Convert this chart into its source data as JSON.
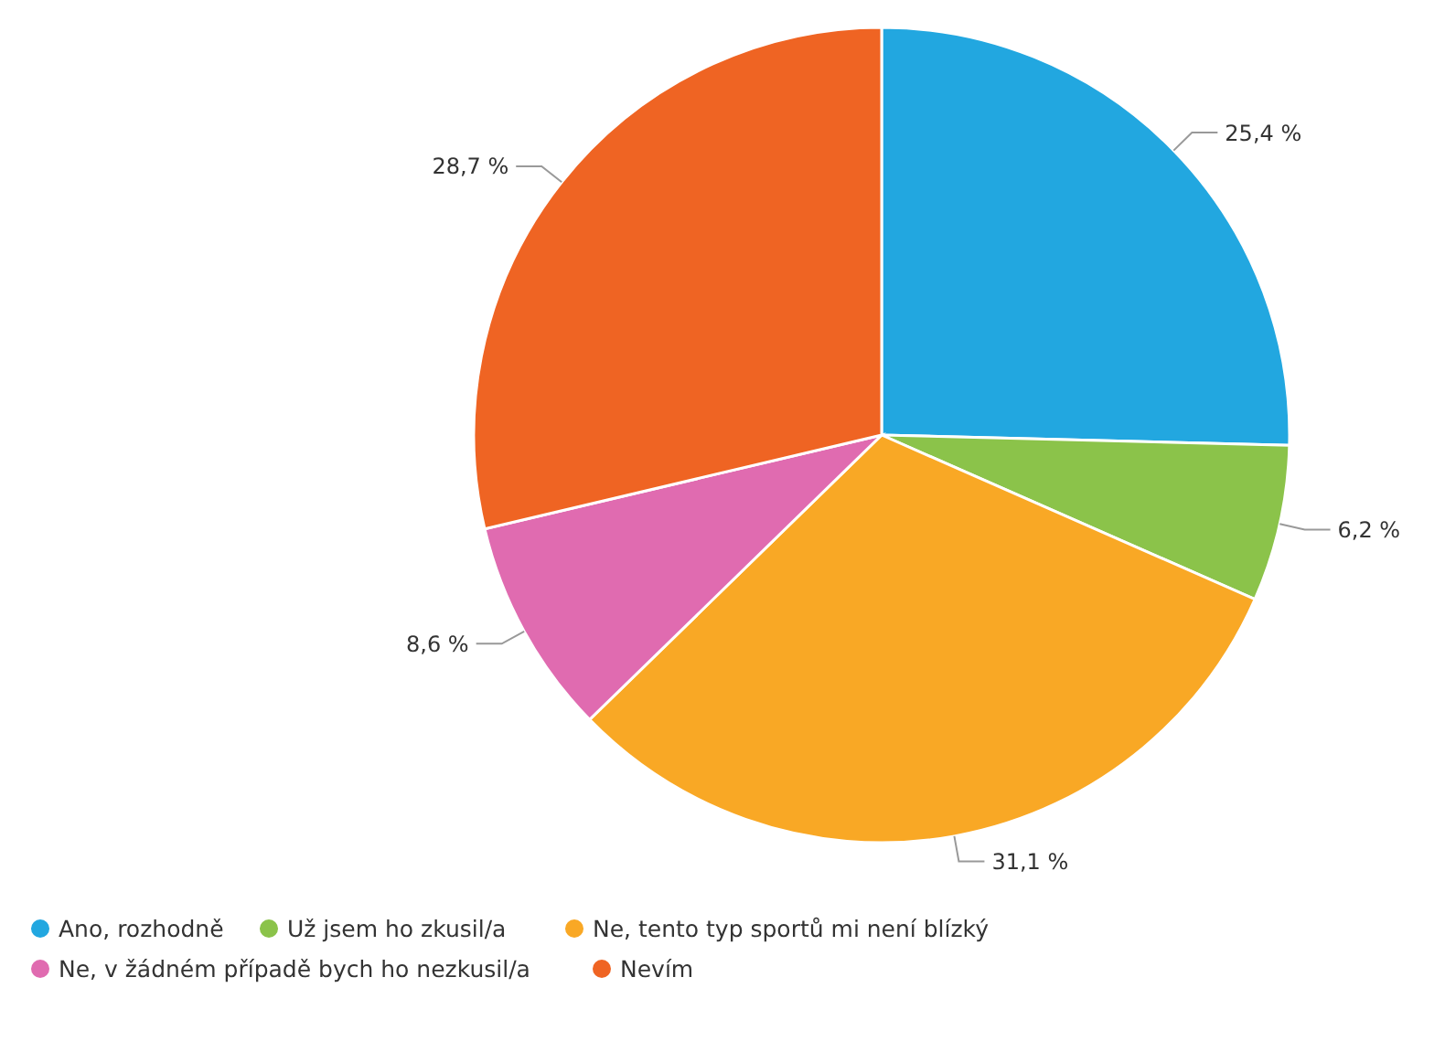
{
  "chart_data": {
    "type": "pie",
    "categories": [
      "Ano, rozhodně",
      "Už jsem ho zkusil/a",
      "Ne, tento typ sportů mi není blízký",
      "Ne, v žádném případě bych ho nezkusil/a",
      "Nevím"
    ],
    "values": [
      25.4,
      6.2,
      31.1,
      8.6,
      28.7
    ],
    "colors": [
      "#22a7e0",
      "#8bc34a",
      "#f9a825",
      "#e06bb0",
      "#ef6423"
    ],
    "value_labels": [
      "25,4 %",
      "6,2 %",
      "31,1 %",
      "8,6 %",
      "28,7 %"
    ],
    "legend": "bottom"
  }
}
